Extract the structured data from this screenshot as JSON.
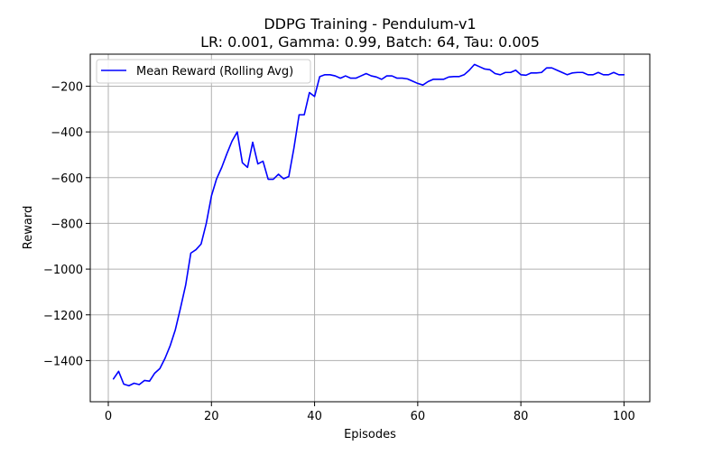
{
  "chart_data": {
    "type": "line",
    "title": "DDPG Training - Pendulum-v1",
    "subtitle": "LR: 0.001, Gamma: 0.99, Batch: 64, Tau: 0.005",
    "xlabel": "Episodes",
    "ylabel": "Reward",
    "xlim": [
      -3.5,
      105.0
    ],
    "ylim": [
      -1580,
      -60
    ],
    "xticks": [
      0,
      20,
      40,
      60,
      80,
      100
    ],
    "yticks": [
      -1400,
      -1200,
      -1000,
      -800,
      -600,
      -400,
      -200
    ],
    "xtick_labels": [
      "0",
      "20",
      "40",
      "60",
      "80",
      "100"
    ],
    "ytick_labels": [
      "−1400",
      "−1200",
      "−1000",
      "−800",
      "−600",
      "−400",
      "−200"
    ],
    "grid": true,
    "legend_position": "top-left",
    "series": [
      {
        "name": "Mean Reward (Rolling Avg)",
        "color": "#0000ff",
        "x": [
          1,
          2,
          3,
          4,
          5,
          6,
          7,
          8,
          9,
          10,
          11,
          12,
          13,
          14,
          15,
          16,
          17,
          18,
          19,
          20,
          21,
          22,
          23,
          24,
          25,
          26,
          27,
          28,
          29,
          30,
          31,
          32,
          33,
          34,
          35,
          36,
          37,
          38,
          39,
          40,
          41,
          42,
          43,
          44,
          45,
          46,
          47,
          48,
          49,
          50,
          51,
          52,
          53,
          54,
          55,
          56,
          57,
          58,
          59,
          60,
          61,
          62,
          63,
          64,
          65,
          66,
          67,
          68,
          69,
          70,
          71,
          72,
          73,
          74,
          75,
          76,
          77,
          78,
          79,
          80,
          81,
          82,
          83,
          84,
          85,
          86,
          87,
          88,
          89,
          90,
          91,
          92,
          93,
          94,
          95,
          96,
          97,
          98,
          99,
          100
        ],
        "y": [
          -1480,
          -1447,
          -1503,
          -1510,
          -1499,
          -1505,
          -1487,
          -1490,
          -1455,
          -1435,
          -1390,
          -1335,
          -1265,
          -1170,
          -1070,
          -930,
          -915,
          -890,
          -800,
          -680,
          -605,
          -555,
          -495,
          -440,
          -400,
          -535,
          -555,
          -445,
          -540,
          -528,
          -607,
          -607,
          -585,
          -605,
          -595,
          -470,
          -325,
          -325,
          -228,
          -245,
          -158,
          -150,
          -150,
          -155,
          -165,
          -155,
          -165,
          -165,
          -155,
          -145,
          -155,
          -160,
          -170,
          -155,
          -155,
          -165,
          -165,
          -168,
          -178,
          -188,
          -195,
          -180,
          -170,
          -170,
          -170,
          -160,
          -158,
          -158,
          -150,
          -130,
          -105,
          -115,
          -125,
          -128,
          -145,
          -150,
          -140,
          -140,
          -130,
          -150,
          -152,
          -142,
          -142,
          -140,
          -120,
          -120,
          -130,
          -140,
          -150,
          -142,
          -140,
          -140,
          -150,
          -150,
          -140,
          -150,
          -150,
          -140,
          -150,
          -150
        ]
      }
    ]
  }
}
